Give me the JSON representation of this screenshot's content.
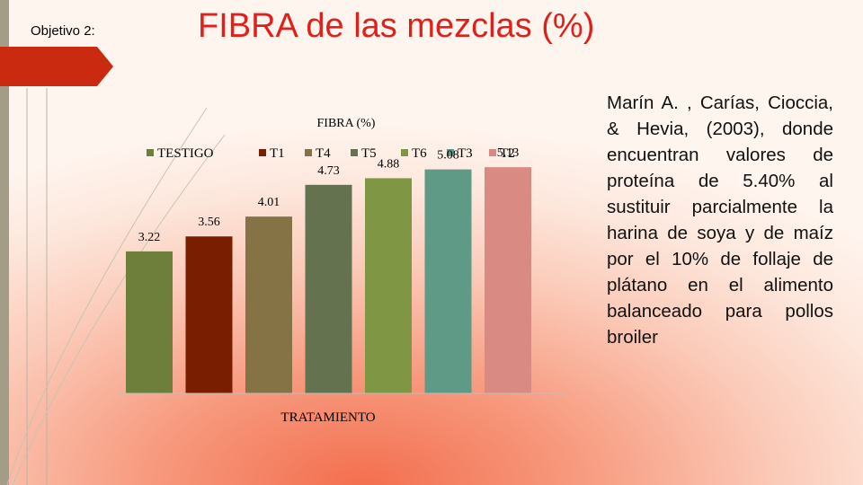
{
  "slide": {
    "label": "Objetivo 2:",
    "title": "FIBRA de las mezclas (%)",
    "reference_text": "Marín A. , Carías, Cioccia, & Hevia, (2003), donde encuentran valores de proteína de 5.40% al sustituir parcialmente la harina de soya y de maíz por el 10% de follaje de plátano en el alimento balanceado para pollos broiler"
  },
  "chart_data": {
    "type": "bar",
    "title": "FIBRA (%)",
    "xlabel": "TRATAMIENTO",
    "ylabel": "",
    "categories": [
      "TESTIGO",
      "T1",
      "T4",
      "T5",
      "T6",
      "T3",
      "T2"
    ],
    "values": [
      3.22,
      3.56,
      4.01,
      4.73,
      4.88,
      5.08,
      5.13
    ],
    "colors": [
      "#6e7e3b",
      "#7a1e00",
      "#857245",
      "#647250",
      "#7f9644",
      "#5f9a86",
      "#d88a83"
    ],
    "ylim": [
      0,
      5.5
    ],
    "legend": "top",
    "grid": false,
    "data_labels": true
  }
}
